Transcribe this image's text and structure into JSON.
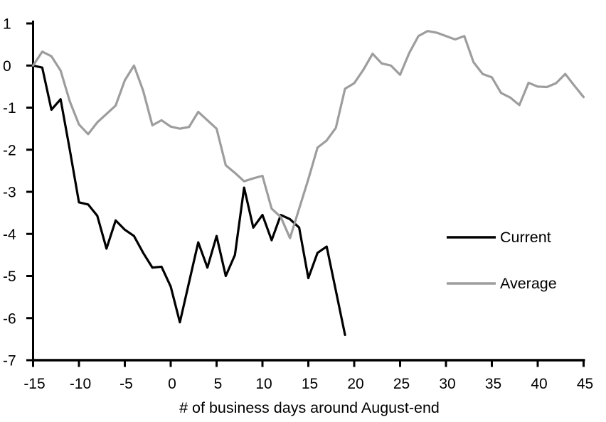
{
  "chart_data": {
    "type": "line",
    "title": "",
    "xlabel": "# of business days around August-end",
    "ylabel": "",
    "xlim": [
      -15,
      45
    ],
    "ylim": [
      -7,
      1
    ],
    "x_ticks": [
      -15,
      -10,
      -5,
      0,
      5,
      10,
      15,
      20,
      25,
      30,
      35,
      40,
      45
    ],
    "y_ticks": [
      1,
      0,
      -1,
      -2,
      -3,
      -4,
      -5,
      -6,
      -7
    ],
    "grid": false,
    "legend_position": "right-middle",
    "axis_color": "#000000",
    "background_color": "#ffffff",
    "series": [
      {
        "name": "Current",
        "color": "#000000",
        "x_start": -15,
        "x_step": 1,
        "values": [
          0.0,
          -0.05,
          -1.05,
          -0.8,
          -2.0,
          -3.25,
          -3.3,
          -3.57,
          -4.35,
          -3.68,
          -3.9,
          -4.05,
          -4.45,
          -4.8,
          -4.78,
          -5.25,
          -6.1,
          -5.15,
          -4.2,
          -4.8,
          -4.05,
          -5.0,
          -4.5,
          -2.9,
          -3.85,
          -3.55,
          -4.15,
          -3.55,
          -3.65,
          -3.85,
          -5.05,
          -4.45,
          -4.3,
          -5.35,
          -6.4
        ]
      },
      {
        "name": "Average",
        "color": "#9d9d9d",
        "x_start": -15,
        "x_step": 1,
        "values": [
          0.0,
          0.33,
          0.22,
          -0.12,
          -0.85,
          -1.4,
          -1.63,
          -1.35,
          -1.15,
          -0.95,
          -0.35,
          0.0,
          -0.6,
          -1.42,
          -1.3,
          -1.45,
          -1.5,
          -1.46,
          -1.1,
          -1.3,
          -1.5,
          -2.37,
          -2.55,
          -2.75,
          -2.68,
          -2.62,
          -3.4,
          -3.6,
          -4.1,
          -3.4,
          -2.7,
          -1.95,
          -1.78,
          -1.48,
          -0.55,
          -0.42,
          -0.1,
          0.28,
          0.05,
          0.0,
          -0.22,
          0.3,
          0.7,
          0.82,
          0.78,
          0.7,
          0.62,
          0.7,
          0.08,
          -0.2,
          -0.28,
          -0.65,
          -0.76,
          -0.94,
          -0.41,
          -0.5,
          -0.51,
          -0.42,
          -0.2,
          -0.48,
          -0.75
        ]
      }
    ]
  }
}
